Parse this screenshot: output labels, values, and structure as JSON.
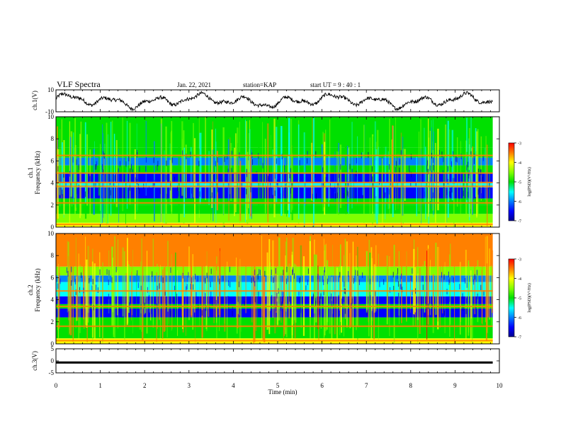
{
  "header": {
    "title": "VLF Spectra",
    "date": "Jan. 22, 2021",
    "station": "station=KAP",
    "start_ut": "start UT =  9 : 40 : 1"
  },
  "chart_data": [
    {
      "type": "line",
      "name": "panel-ch1-waveform",
      "ylabel": "ch.1(V)",
      "ylim": [
        -10,
        10
      ],
      "y_tick_labels": [
        "10",
        "-10"
      ],
      "xlim": [
        0,
        10
      ],
      "trace_end_min": 9.85
    },
    {
      "type": "heatmap",
      "name": "panel-ch1-spectrogram",
      "ylabel_line1": "ch.1",
      "ylabel_line2": "Frequency (kHz)",
      "ylim": [
        0,
        10
      ],
      "y_tick_labels": [
        "0",
        "2",
        "4",
        "6",
        "8",
        "10"
      ],
      "xlim": [
        0,
        10
      ],
      "data_end_min": 9.85,
      "background_bands_khz": [
        {
          "from": 0,
          "to": 0.4,
          "level": -3.8
        },
        {
          "from": 0.4,
          "to": 1.2,
          "level": -4.6
        },
        {
          "from": 1.2,
          "to": 2.0,
          "level": -5.2
        },
        {
          "from": 2.0,
          "to": 2.6,
          "level": -5.0
        },
        {
          "from": 2.6,
          "to": 3.6,
          "level": -6.3
        },
        {
          "from": 3.6,
          "to": 4.0,
          "level": -5.4
        },
        {
          "from": 4.0,
          "to": 4.9,
          "level": -6.4
        },
        {
          "from": 4.9,
          "to": 5.6,
          "level": -5.2
        },
        {
          "from": 5.6,
          "to": 6.3,
          "level": -6.1
        },
        {
          "from": 6.3,
          "to": 7.2,
          "level": -5.1
        },
        {
          "from": 7.2,
          "to": 10.0,
          "level": -4.9
        }
      ],
      "line_emissions_khz": [
        0.25,
        2.2,
        3.7,
        4.05,
        4.9,
        6.5
      ]
    },
    {
      "type": "heatmap",
      "name": "panel-ch2-spectrogram",
      "ylabel_line1": "ch.2",
      "ylabel_line2": "Frequency (kHz)",
      "ylim": [
        0,
        10
      ],
      "y_tick_labels": [
        "0",
        "2",
        "4",
        "6",
        "8",
        "10"
      ],
      "xlim": [
        0,
        10
      ],
      "data_end_min": 9.85,
      "background_bands_khz": [
        {
          "from": 0,
          "to": 0.5,
          "level": -3.9
        },
        {
          "from": 0.5,
          "to": 1.6,
          "level": -5.2
        },
        {
          "from": 1.6,
          "to": 2.4,
          "level": -4.9
        },
        {
          "from": 2.4,
          "to": 3.2,
          "level": -6.3
        },
        {
          "from": 3.2,
          "to": 3.6,
          "level": -5.0
        },
        {
          "from": 3.6,
          "to": 4.3,
          "level": -6.4
        },
        {
          "from": 4.3,
          "to": 5.6,
          "level": -5.4
        },
        {
          "from": 5.6,
          "to": 6.2,
          "level": -6.0
        },
        {
          "from": 6.2,
          "to": 7.0,
          "level": -4.6
        },
        {
          "from": 7.0,
          "to": 10.0,
          "level": -3.6
        }
      ],
      "line_emissions_khz": [
        0.3,
        1.6,
        3.4,
        4.8
      ]
    },
    {
      "type": "line",
      "name": "panel-ch3-signal",
      "ylabel": "ch.3(V)",
      "ylim": [
        -5,
        5
      ],
      "y_tick_labels": [
        "5",
        "0",
        "-5"
      ],
      "xlim": [
        0,
        10
      ],
      "xlabel": "Time (min)",
      "x_tick_labels": [
        "0",
        "1",
        "2",
        "3",
        "4",
        "5",
        "6",
        "7",
        "8",
        "9",
        "10"
      ],
      "level_v": -0.7,
      "thickness_v": 0.9
    }
  ],
  "colorbars": [
    {
      "name": "colorbar-ch1",
      "tick_labels": [
        "-3",
        "-4",
        "-5",
        "-6",
        "-7"
      ],
      "range": [
        -7,
        -3
      ],
      "label": "log(PSD)(V²/Hz)"
    },
    {
      "name": "colorbar-ch2",
      "tick_labels": [
        "-3",
        "-4",
        "-5",
        "-6",
        "-7"
      ],
      "range": [
        -7,
        -3
      ],
      "label": "log(PSD)(V²/Hz)"
    }
  ],
  "colormap": [
    "#00008f",
    "#0000ff",
    "#0080ff",
    "#00ffff",
    "#00e000",
    "#80ff00",
    "#ffff00",
    "#ff8000",
    "#ff0000"
  ]
}
